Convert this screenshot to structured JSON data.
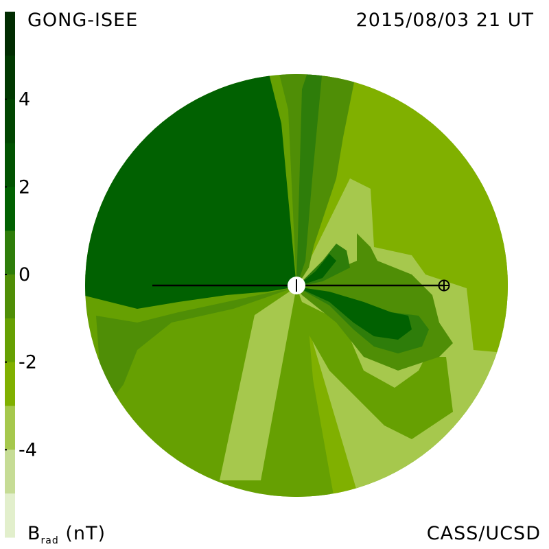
{
  "header": {
    "source": "GONG-ISEE",
    "datetime": "2015/08/03 21 UT"
  },
  "footer": {
    "credit": "CASS/UCSD",
    "quantity": "B",
    "quantity_sub": "rad",
    "unit": "(nT)"
  },
  "chart_data": {
    "type": "heatmap",
    "title": "",
    "colorbar": {
      "label": "B rad (nT)",
      "range": [
        -6,
        6
      ],
      "ticks": [
        {
          "value": 4,
          "label": "4"
        },
        {
          "value": 2,
          "label": "2"
        },
        {
          "value": 0,
          "label": "0"
        },
        {
          "value": -2,
          "label": "-2"
        },
        {
          "value": -4,
          "label": "-4"
        }
      ],
      "levels": [
        {
          "lo": 5,
          "hi": 6,
          "color": "#012c01"
        },
        {
          "lo": 4,
          "hi": 5,
          "color": "#013901"
        },
        {
          "lo": 3,
          "hi": 4,
          "color": "#014601"
        },
        {
          "lo": 2,
          "hi": 3,
          "color": "#015301"
        },
        {
          "lo": 1,
          "hi": 2,
          "color": "#016101"
        },
        {
          "lo": 0,
          "hi": 1,
          "color": "#2e7d0a"
        },
        {
          "lo": -1,
          "hi": 0,
          "color": "#4f8e06"
        },
        {
          "lo": -2,
          "hi": -1,
          "color": "#66a002"
        },
        {
          "lo": -3,
          "hi": -2,
          "color": "#80b000"
        },
        {
          "lo": -4,
          "hi": -3,
          "color": "#a6c84d"
        },
        {
          "lo": -5,
          "hi": -4,
          "color": "#c6dc95"
        },
        {
          "lo": -6,
          "hi": -5,
          "color": "#e2efcc"
        }
      ]
    },
    "field": [
      {
        "level": -2.5,
        "points": [
          [
            432,
            418
          ],
          [
            470,
            100
          ],
          [
            800,
            100
          ],
          [
            800,
            800
          ],
          [
            500,
            800
          ]
        ]
      },
      {
        "level": -3.5,
        "points": [
          [
            432,
            418
          ],
          [
            380,
            700
          ],
          [
            320,
            700
          ],
          [
            375,
            440
          ]
        ]
      },
      {
        "level": -3.5,
        "points": [
          [
            432,
            418
          ],
          [
            510,
            260
          ],
          [
            540,
            275
          ],
          [
            545,
            360
          ],
          [
            600,
            372
          ],
          [
            620,
            400
          ],
          [
            680,
            420
          ],
          [
            690,
            510
          ],
          [
            800,
            520
          ],
          [
            800,
            800
          ],
          [
            545,
            800
          ]
        ]
      },
      {
        "level": -1.5,
        "points": [
          [
            432,
            418
          ],
          [
            440,
            440
          ],
          [
            500,
            470
          ],
          [
            530,
            540
          ],
          [
            575,
            565
          ],
          [
            610,
            540
          ],
          [
            620,
            520
          ],
          [
            650,
            520
          ],
          [
            660,
            600
          ],
          [
            600,
            640
          ],
          [
            560,
            620
          ],
          [
            520,
            580
          ],
          [
            480,
            540
          ],
          [
            440,
            470
          ]
        ]
      },
      {
        "level": -1.5,
        "points": [
          [
            432,
            418
          ],
          [
            383,
            800
          ],
          [
            495,
            800
          ],
          [
            460,
            600
          ],
          [
            450,
            480
          ]
        ]
      },
      {
        "level": -1.5,
        "points": [
          [
            432,
            418
          ],
          [
            370,
            440
          ],
          [
            300,
            450
          ],
          [
            240,
            470
          ],
          [
            200,
            500
          ],
          [
            170,
            540
          ],
          [
            160,
            600
          ],
          [
            100,
            650
          ],
          [
            100,
            800
          ],
          [
            310,
            800
          ],
          [
            190,
            600
          ],
          [
            200,
            560
          ],
          [
            230,
            520
          ],
          [
            290,
            490
          ],
          [
            340,
            480
          ]
        ]
      },
      {
        "level": -0.5,
        "points": [
          [
            432,
            418
          ],
          [
            520,
            380
          ],
          [
            520,
            340
          ],
          [
            540,
            360
          ],
          [
            550,
            380
          ],
          [
            600,
            400
          ],
          [
            630,
            430
          ],
          [
            640,
            470
          ],
          [
            660,
            500
          ],
          [
            640,
            520
          ],
          [
            610,
            530
          ],
          [
            580,
            540
          ],
          [
            530,
            520
          ],
          [
            490,
            470
          ],
          [
            440,
            430
          ]
        ]
      },
      {
        "level": -0.5,
        "points": [
          [
            432,
            418
          ],
          [
            340,
            450
          ],
          [
            250,
            470
          ],
          [
            200,
            510
          ],
          [
            180,
            560
          ],
          [
            150,
            600
          ],
          [
            140,
            460
          ],
          [
            200,
            470
          ],
          [
            260,
            455
          ],
          [
            330,
            440
          ]
        ]
      },
      {
        "level": -0.5,
        "points": [
          [
            432,
            418
          ],
          [
            420,
            160
          ],
          [
            405,
            100
          ],
          [
            460,
            100
          ],
          [
            470,
            200
          ],
          [
            480,
            260
          ],
          [
            450,
            390
          ]
        ]
      },
      {
        "level": -0.5,
        "points": [
          [
            432,
            418
          ],
          [
            460,
            100
          ],
          [
            520,
            100
          ],
          [
            500,
            200
          ],
          [
            490,
            260
          ],
          [
            445,
            395
          ]
        ]
      },
      {
        "level": 0.5,
        "points": [
          [
            432,
            418
          ],
          [
            470,
            380
          ],
          [
            490,
            355
          ],
          [
            505,
            365
          ],
          [
            510,
            390
          ],
          [
            470,
            410
          ]
        ]
      },
      {
        "level": 0.5,
        "points": [
          [
            432,
            418
          ],
          [
            470,
            425
          ],
          [
            520,
            440
          ],
          [
            570,
            455
          ],
          [
            610,
            460
          ],
          [
            625,
            480
          ],
          [
            615,
            505
          ],
          [
            580,
            515
          ],
          [
            545,
            505
          ],
          [
            515,
            480
          ],
          [
            480,
            445
          ]
        ]
      },
      {
        "level": 0.5,
        "points": [
          [
            432,
            418
          ],
          [
            440,
            130
          ],
          [
            450,
            100
          ],
          [
            470,
            100
          ],
          [
            455,
            260
          ],
          [
            445,
            380
          ]
        ]
      },
      {
        "level": 1.5,
        "points": [
          [
            432,
            418
          ],
          [
            480,
            425
          ],
          [
            530,
            440
          ],
          [
            570,
            455
          ],
          [
            595,
            460
          ],
          [
            600,
            480
          ],
          [
            580,
            495
          ],
          [
            545,
            490
          ],
          [
            515,
            470
          ],
          [
            480,
            440
          ]
        ]
      },
      {
        "level": 1.5,
        "points": [
          [
            432,
            418
          ],
          [
            460,
            395
          ],
          [
            480,
            370
          ],
          [
            490,
            380
          ],
          [
            470,
            405
          ]
        ]
      },
      {
        "level": 1.5,
        "points": [
          [
            432,
            418
          ],
          [
            410,
            180
          ],
          [
            390,
            100
          ],
          [
            140,
            100
          ],
          [
            120,
            430
          ],
          [
            200,
            450
          ],
          [
            260,
            440
          ],
          [
            330,
            430
          ],
          [
            390,
            425
          ]
        ]
      }
    ],
    "grid": false,
    "legend": "none"
  }
}
